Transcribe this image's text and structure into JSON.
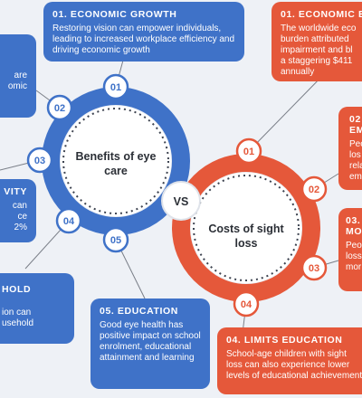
{
  "benefits": {
    "title_line1": "Benefits of eye",
    "title_line2": "care",
    "badges": [
      "01",
      "02",
      "03",
      "04",
      "05"
    ],
    "color": "#3f72c8",
    "cards": {
      "economic": {
        "title": "01. ECONOMIC GROWTH",
        "text": "Restoring vision can empower individuals, leading to increased workplace efficiency and driving economic growth"
      },
      "card02": {
        "text_l1": "are",
        "text_l2": "omic"
      },
      "productivity": {
        "title": "VITY",
        "text_l1": "can",
        "text_l2": "ce",
        "text_l3": "2%"
      },
      "household": {
        "title": "HOLD",
        "text_l1": "ion can",
        "text_l2": "usehold"
      },
      "education": {
        "title": "05. EDUCATION",
        "text": "Good eye health has positive impact on school enrolment, educational attainment and learning"
      }
    }
  },
  "costs": {
    "title_line1": "Costs of sight",
    "title_line2": "loss",
    "badges": [
      "01",
      "02",
      "03",
      "04"
    ],
    "color": "#e5583a",
    "cards": {
      "economic": {
        "title": "01. ECONOMIC B",
        "text_l1": "The worldwide eco",
        "text_l2": "burden attributed",
        "text_l3": "impairment and bl",
        "text_l4": "a staggering $411",
        "text_l5": "annually"
      },
      "card02": {
        "title_l1": "02",
        "title_l2": "EM",
        "text_l1": "Peo",
        "text_l2": "los",
        "text_l3": "rela",
        "text_l4": "em"
      },
      "card03": {
        "title_l1": "03.",
        "title_l2": "MO",
        "text_l1": "Peo",
        "text_l2": "loss",
        "text_l3": "mor"
      },
      "education": {
        "title": "04. LIMITS EDUCATION",
        "text": "School-age children with sight loss can also experience lower levels of educational achievement"
      }
    }
  },
  "vs_label": "VS"
}
